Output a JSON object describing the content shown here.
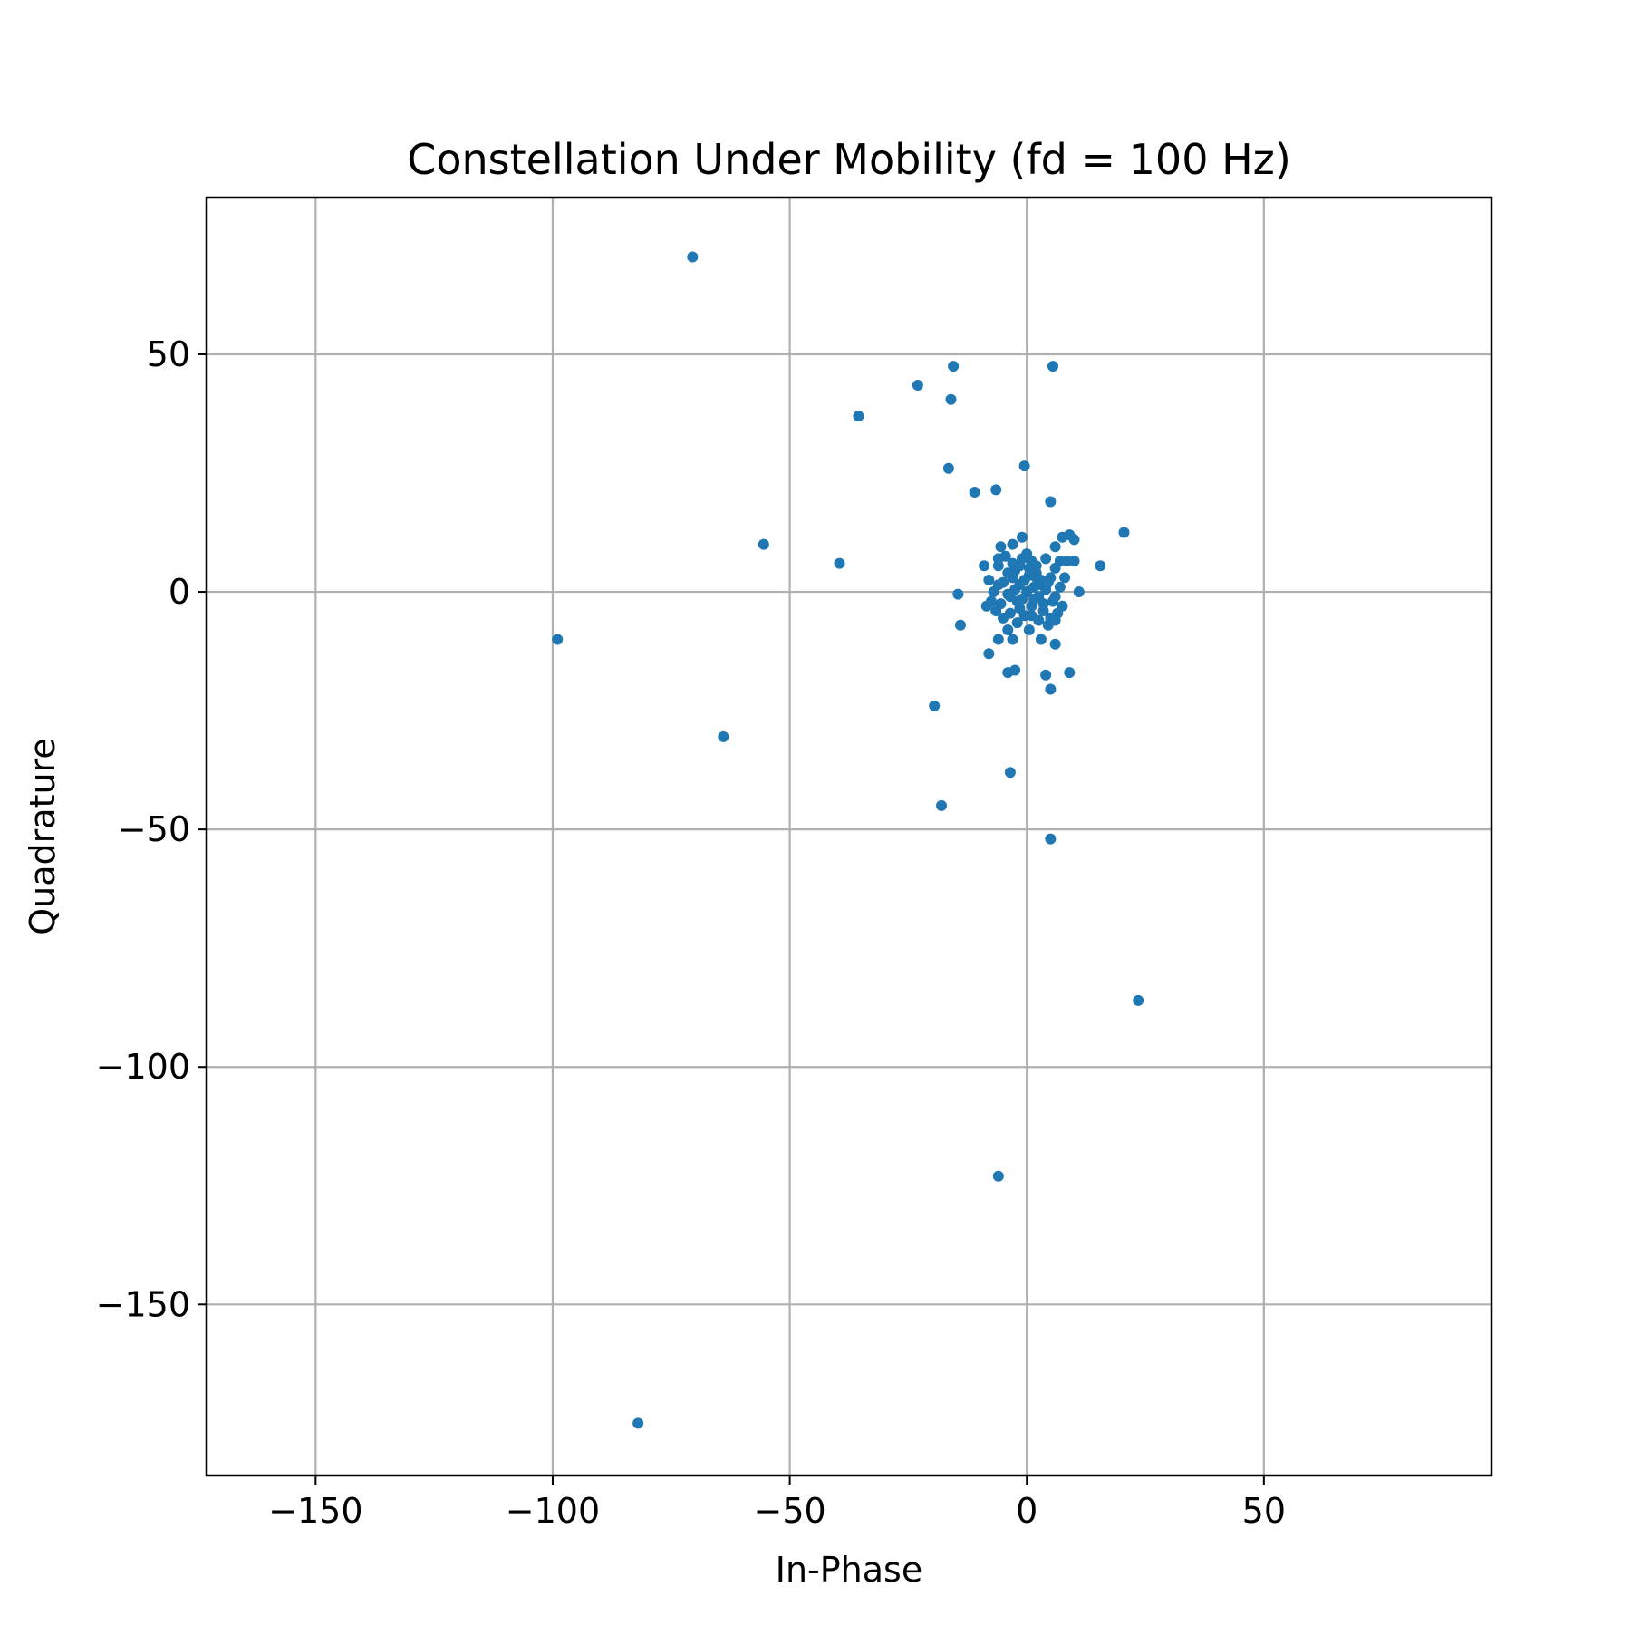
{
  "chart_data": {
    "type": "scatter",
    "title": "Constellation Under Mobility (fd = 100 Hz)",
    "xlabel": "In-Phase",
    "ylabel": "Quadrature",
    "xlim": [
      -173,
      98
    ],
    "ylim": [
      -186,
      83
    ],
    "xticks": [
      -150,
      -100,
      -50,
      0,
      50
    ],
    "yticks": [
      -150,
      -100,
      -50,
      0,
      50
    ],
    "xtick_labels": [
      "−150",
      "−100",
      "−50",
      "0",
      "50"
    ],
    "ytick_labels": [
      "−150",
      "−100",
      "−50",
      "0",
      "50"
    ],
    "grid": true,
    "marker_color": "#1f77b4",
    "series": [
      {
        "points": [
          [
            -70.5,
            70.5
          ],
          [
            -15.5,
            47.5
          ],
          [
            5.5,
            47.5
          ],
          [
            -23,
            43.5
          ],
          [
            -16,
            40.5
          ],
          [
            -35.5,
            37
          ],
          [
            -0.5,
            26.5
          ],
          [
            -16.5,
            26
          ],
          [
            -11,
            21
          ],
          [
            -6.5,
            21.5
          ],
          [
            5,
            19
          ],
          [
            -55.5,
            10
          ],
          [
            -39.5,
            6
          ],
          [
            20.5,
            12.5
          ],
          [
            15.5,
            5.5
          ],
          [
            11,
            0
          ],
          [
            9,
            12
          ],
          [
            10,
            11
          ],
          [
            7.5,
            11.5
          ],
          [
            6,
            9.5
          ],
          [
            -1,
            11.5
          ],
          [
            -3,
            10
          ],
          [
            -5.5,
            9.5
          ],
          [
            -9,
            5.5
          ],
          [
            -8.5,
            -3
          ],
          [
            -14.5,
            -0.5
          ],
          [
            -14,
            -7
          ],
          [
            -8,
            -13
          ],
          [
            -6,
            -10
          ],
          [
            -3,
            -10
          ],
          [
            -4,
            -17
          ],
          [
            -2.5,
            -16.5
          ],
          [
            4,
            -17.5
          ],
          [
            5,
            -20.5
          ],
          [
            9,
            -17
          ],
          [
            6,
            -11
          ],
          [
            3,
            -10
          ],
          [
            -19.5,
            -24
          ],
          [
            -64,
            -30.5
          ],
          [
            -99,
            -10
          ],
          [
            -3.5,
            -38
          ],
          [
            -18,
            -45
          ],
          [
            5,
            -52
          ],
          [
            23.5,
            -86
          ],
          [
            -6,
            -123
          ],
          [
            -82,
            -175
          ],
          [
            0,
            0
          ],
          [
            1.5,
            1
          ],
          [
            -1.5,
            1.5
          ],
          [
            2.5,
            -1
          ],
          [
            -2,
            -2
          ],
          [
            3,
            2.5
          ],
          [
            -3,
            3
          ],
          [
            1,
            -3
          ],
          [
            -1,
            -1.5
          ],
          [
            4,
            0.5
          ],
          [
            -4,
            -0.5
          ],
          [
            2,
            4
          ],
          [
            -2.5,
            4.5
          ],
          [
            0.5,
            5
          ],
          [
            -0.5,
            -5
          ],
          [
            3.5,
            -4
          ],
          [
            -3.5,
            -4.5
          ],
          [
            5,
            3
          ],
          [
            -5,
            2
          ],
          [
            5.5,
            -2
          ],
          [
            -5.5,
            -2.5
          ],
          [
            1,
            6.5
          ],
          [
            -1,
            7
          ],
          [
            2.5,
            -6
          ],
          [
            -2,
            -6.5
          ],
          [
            6,
            5
          ],
          [
            -6,
            5.5
          ],
          [
            6.5,
            -4.5
          ],
          [
            -6.5,
            -4
          ],
          [
            7,
            1
          ],
          [
            -7,
            0
          ],
          [
            4,
            7
          ],
          [
            -4.5,
            7.5
          ],
          [
            4.5,
            -7
          ],
          [
            -4,
            -8
          ],
          [
            7.5,
            -3
          ],
          [
            -7.5,
            -2
          ],
          [
            8,
            3
          ],
          [
            -8,
            2.5
          ],
          [
            0,
            8
          ],
          [
            0.5,
            -8
          ],
          [
            3,
            1.5
          ],
          [
            -2.5,
            0.5
          ],
          [
            1.5,
            -1.5
          ],
          [
            -0.5,
            2.5
          ],
          [
            2,
            3
          ],
          [
            -3.5,
            -1
          ],
          [
            4.5,
            2
          ],
          [
            -1.5,
            -3.5
          ],
          [
            0.5,
            3.5
          ],
          [
            6,
            -1
          ],
          [
            -5,
            -5.5
          ],
          [
            5,
            -5.5
          ],
          [
            -6,
            1.5
          ],
          [
            2,
            5.5
          ],
          [
            -3,
            6
          ],
          [
            3.5,
            -2.5
          ],
          [
            -4,
            4
          ],
          [
            1,
            -5
          ],
          [
            -1.5,
            5.5
          ],
          [
            7,
            6.5
          ],
          [
            8.5,
            6.5
          ],
          [
            10,
            6.5
          ],
          [
            -6,
            7
          ],
          [
            6,
            -6
          ]
        ]
      }
    ]
  }
}
